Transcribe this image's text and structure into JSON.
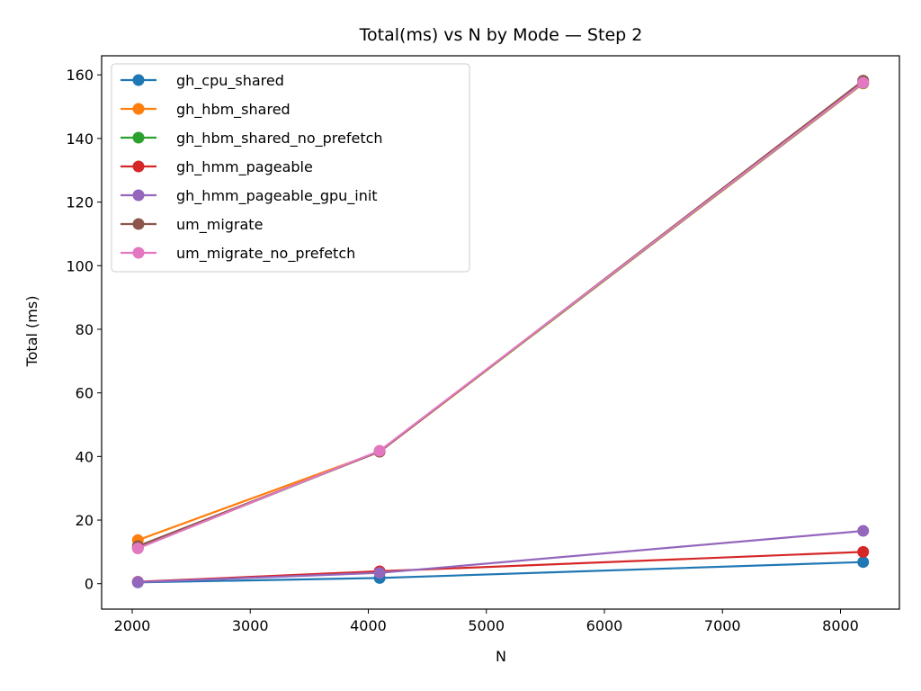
{
  "chart_data": {
    "type": "line",
    "title": "Total(ms) vs N by Mode — Step 2",
    "xlabel": "N",
    "ylabel": "Total (ms)",
    "xlim": [
      1741,
      8499
    ],
    "ylim": [
      -8,
      166
    ],
    "xticks": [
      2000,
      3000,
      4000,
      5000,
      6000,
      7000,
      8000
    ],
    "yticks": [
      0,
      20,
      40,
      60,
      80,
      100,
      120,
      140,
      160
    ],
    "grid": false,
    "legend_position": "top-left",
    "x": [
      2048,
      4096,
      8192
    ],
    "series": [
      {
        "name": "gh_cpu_shared",
        "color": "#1f77b4",
        "values": [
          0.4,
          1.8,
          6.8
        ]
      },
      {
        "name": "gh_hbm_shared",
        "color": "#ff7f0e",
        "values": [
          13.7,
          41.5,
          157.3
        ]
      },
      {
        "name": "gh_hbm_shared_no_prefetch",
        "color": "#2ca02c",
        "values": [
          11.2,
          41.6,
          157.4
        ]
      },
      {
        "name": "gh_hmm_pageable",
        "color": "#d62728",
        "values": [
          0.6,
          3.9,
          10.0
        ]
      },
      {
        "name": "gh_hmm_pageable_gpu_init",
        "color": "#9467bd",
        "values": [
          0.5,
          3.4,
          16.6
        ]
      },
      {
        "name": "um_migrate",
        "color": "#8c564b",
        "values": [
          11.8,
          41.5,
          158.2
        ]
      },
      {
        "name": "um_migrate_no_prefetch",
        "color": "#e377c2",
        "values": [
          11.1,
          41.8,
          157.5
        ]
      }
    ]
  }
}
